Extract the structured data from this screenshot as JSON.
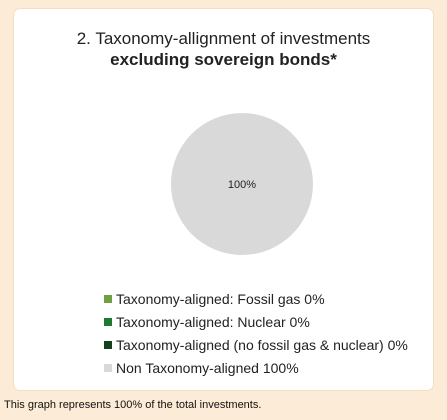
{
  "chart_data": {
    "type": "pie",
    "title": "2. Taxonomy-allignment of investments",
    "subtitle": "excluding sovereign bonds*",
    "slices": [
      {
        "name": "Taxonomy-aligned: Fossil gas 0%",
        "value": 0,
        "color": "#70a040"
      },
      {
        "name": "Taxonomy-aligned: Nuclear 0%",
        "value": 0,
        "color": "#1e7a2e"
      },
      {
        "name": "Taxonomy-aligned (no fossil gas & nuclear) 0%",
        "value": 0,
        "color": "#14401c"
      },
      {
        "name": "Non Taxonomy-aligned 100%",
        "value": 100,
        "color": "#d9d9d9"
      }
    ],
    "data_labels": [
      "100%"
    ],
    "legend_position": "bottom"
  },
  "footnote": "This graph represents 100% of the total investments."
}
